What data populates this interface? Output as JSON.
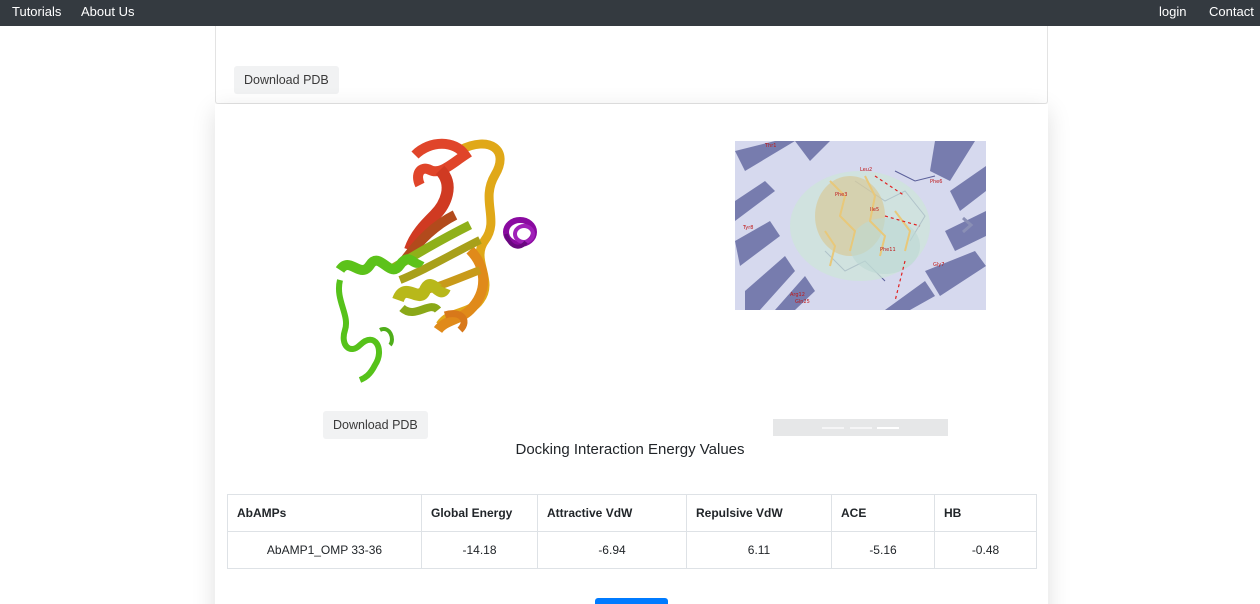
{
  "nav": {
    "tutorials": "Tutorials",
    "about_us": "About Us",
    "login": "login",
    "contact": "Contact"
  },
  "top_card": {
    "download_pdb_label": "Download PDB"
  },
  "structure_panel": {
    "download_pdb_label": "Download PDB",
    "image_icon": "protein-ribbon-structure",
    "helix_color": "#8a0aa0"
  },
  "docking_panel": {
    "image_icon": "docking-interaction-image",
    "carousel_slides": 3,
    "active_slide": 3
  },
  "energy_section": {
    "title": "Docking Interaction Energy Values",
    "columns": [
      "AbAMPs",
      "Global Energy",
      "Attractive VdW",
      "Repulsive VdW",
      "ACE",
      "HB"
    ],
    "rows": [
      [
        "AbAMP1_OMP 33-36",
        "-14.18",
        "-6.94",
        "6.11",
        "-5.16",
        "-0.48"
      ]
    ]
  },
  "colors": {
    "navbar": "#343a40",
    "primary": "#007bff"
  }
}
